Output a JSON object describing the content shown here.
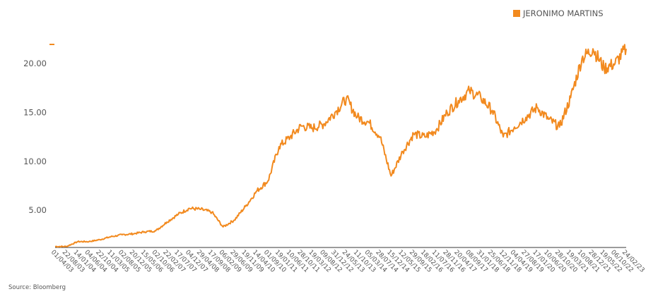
{
  "legend": {
    "label": "JERONIMO MARTINS",
    "color": "#f28a1f"
  },
  "source": "Source: Bloomberg",
  "chart_data": {
    "type": "line",
    "title": "",
    "xlabel": "",
    "ylabel": "",
    "ylim": [
      1.2,
      23.6
    ],
    "y_ticks": [
      "5.00",
      "10.00",
      "15.00",
      "20.00"
    ],
    "x_ticks": [
      "01/04/03",
      "22/08/03",
      "14/01/04",
      "04/06/04",
      "22/10/04",
      "11/03/05",
      "02/08/05",
      "20/12/05",
      "15/05/06",
      "02/10/06",
      "22/02/07",
      "17/07/07",
      "04/12/07",
      "29/04/08",
      "17/09/08",
      "06/02/09",
      "29/06/09",
      "19/11/09",
      "14/04/10",
      "01/09/10",
      "19/01/11",
      "10/06/11",
      "28/10/11",
      "19/03/12",
      "09/08/12",
      "31/12/12",
      "24/05/13",
      "11/10/13",
      "05/03/14",
      "28/07/14",
      "15/12/14",
      "12/05/15",
      "29/09/15",
      "18/02/16",
      "11/07/16",
      "28/11/16",
      "20/04/17",
      "08/09/17",
      "31/01/18",
      "25/06/18",
      "12/11/18",
      "04/04/19",
      "27/08/19",
      "17/01/20",
      "10/06/20",
      "28/10/20",
      "19/03/21",
      "10/08/21",
      "28/12/21",
      "19/05/22",
      "06/10/22",
      "24/02/23"
    ],
    "series": [
      {
        "name": "JERONIMO MARTINS",
        "color": "#f28a1f",
        "x": [
          "2003-04-01",
          "2003-08-22",
          "2004-01-14",
          "2004-06-04",
          "2004-10-22",
          "2005-03-11",
          "2005-08-02",
          "2005-12-20",
          "2006-05-15",
          "2006-10-02",
          "2007-02-22",
          "2007-07-17",
          "2007-12-04",
          "2008-04-29",
          "2008-09-17",
          "2009-02-06",
          "2009-06-29",
          "2009-11-19",
          "2010-04-14",
          "2010-09-01",
          "2011-01-19",
          "2011-06-10",
          "2011-10-28",
          "2012-03-19",
          "2012-08-09",
          "2012-12-31",
          "2013-05-24",
          "2013-10-11",
          "2014-03-05",
          "2014-07-28",
          "2014-12-15",
          "2015-05-12",
          "2015-09-29",
          "2016-02-18",
          "2016-07-11",
          "2016-11-28",
          "2017-04-20",
          "2017-09-08",
          "2018-01-31",
          "2018-06-25",
          "2018-11-12",
          "2019-04-04",
          "2019-08-27",
          "2020-01-17",
          "2020-06-10",
          "2020-10-28",
          "2021-03-19",
          "2021-08-10",
          "2021-12-28",
          "2022-05-19",
          "2022-10-06",
          "2023-02-24"
        ],
        "values": [
          1.3,
          1.3,
          1.8,
          1.8,
          2.0,
          2.3,
          2.5,
          2.6,
          2.8,
          2.9,
          3.8,
          4.6,
          5.2,
          5.1,
          4.8,
          3.3,
          4.0,
          5.4,
          7.0,
          8.0,
          11.5,
          12.5,
          13.6,
          13.4,
          13.8,
          15.0,
          16.4,
          14.5,
          14.0,
          12.5,
          8.5,
          11.0,
          12.8,
          12.5,
          13.2,
          15.0,
          16.2,
          17.2,
          16.5,
          15.2,
          12.5,
          13.5,
          14.5,
          15.5,
          14.3,
          13.5,
          16.5,
          20.5,
          21.5,
          19.5,
          20.0,
          21.5
        ]
      }
    ],
    "grid": false,
    "legend_position": "top-right"
  }
}
